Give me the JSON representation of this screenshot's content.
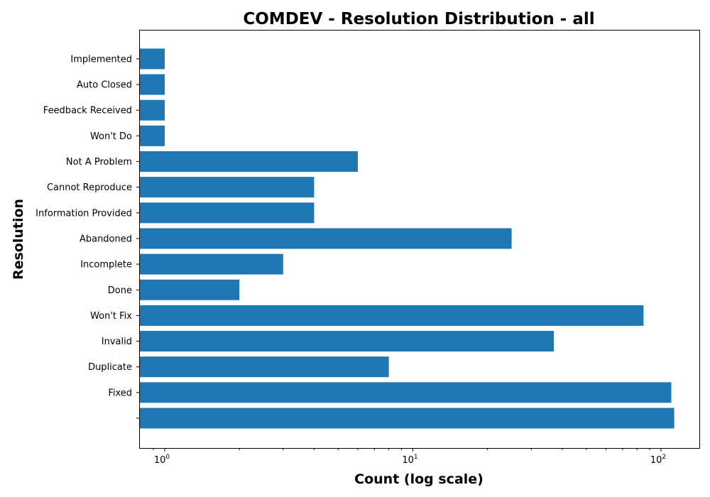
{
  "chart_data": {
    "type": "bar",
    "orientation": "horizontal",
    "title": "COMDEV - Resolution Distribution - all",
    "xlabel": "Count (log scale)",
    "ylabel": "Resolution",
    "xscale": "log",
    "xlim": [
      0.8,
      150
    ],
    "xticks": [
      {
        "base": "10",
        "exp": "0",
        "value": 1
      },
      {
        "base": "10",
        "exp": "1",
        "value": 10
      },
      {
        "base": "10",
        "exp": "2",
        "value": 100
      }
    ],
    "categories": [
      "",
      "Fixed",
      "Duplicate",
      "Invalid",
      "Won't Fix",
      "Done",
      "Incomplete",
      "Abandoned",
      "Information Provided",
      "Cannot Reproduce",
      "Not A Problem",
      "Won't Do",
      "Feedback Received",
      "Auto Closed",
      "Implemented"
    ],
    "values": [
      113,
      110,
      8,
      37,
      85,
      2,
      3,
      25,
      4,
      4,
      6,
      1,
      1,
      1,
      1
    ],
    "color": "#1f77b4"
  }
}
